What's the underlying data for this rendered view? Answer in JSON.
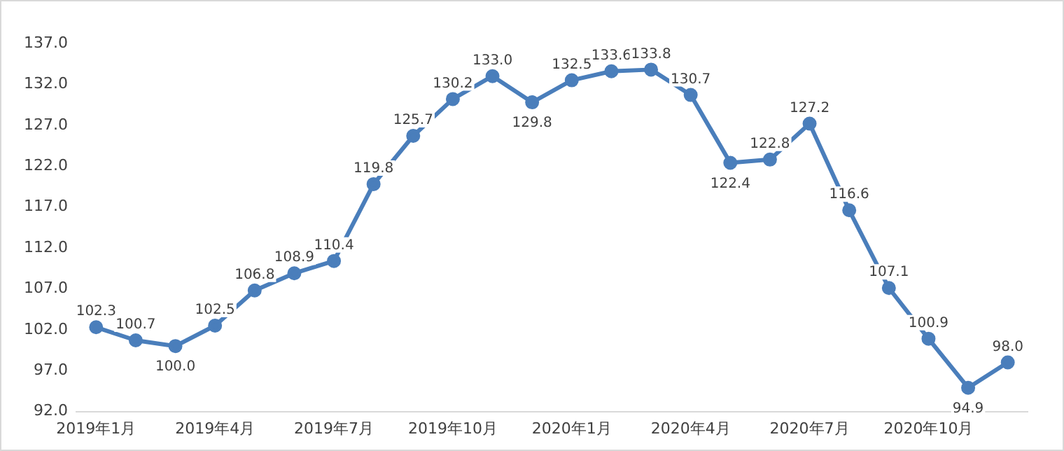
{
  "chart_data": {
    "type": "line",
    "categories": [
      "2019年1月",
      null,
      null,
      "2019年4月",
      null,
      null,
      "2019年7月",
      null,
      null,
      "2019年10月",
      null,
      null,
      "2020年1月",
      null,
      null,
      "2020年4月",
      null,
      null,
      "2020年7月",
      null,
      null,
      "2020年10月",
      null,
      null
    ],
    "series": [
      {
        "color": "#4a7ebb",
        "values": [
          102.3,
          100.7,
          100.0,
          102.5,
          106.8,
          108.9,
          110.4,
          119.8,
          125.7,
          130.2,
          133.0,
          129.8,
          132.5,
          133.6,
          133.8,
          130.7,
          122.4,
          122.8,
          127.2,
          116.6,
          107.1,
          100.9,
          94.9,
          98.0
        ],
        "value_labels": [
          "102.3",
          "100.7",
          "100.0",
          "102.5",
          "106.8",
          "108.9",
          "110.4",
          "119.8",
          "125.7",
          "130.2",
          "133.0",
          "129.8",
          "132.5",
          "133.6",
          "133.8",
          "130.7",
          "122.4",
          "122.8",
          "127.2",
          "116.6",
          "107.1",
          "100.9",
          "94.9",
          "98.0"
        ]
      }
    ],
    "ylim": [
      92,
      137
    ],
    "yticks": [
      {
        "value": 92,
        "label": "92.0"
      },
      {
        "value": 97,
        "label": "97.0"
      },
      {
        "value": 102,
        "label": "102.0"
      },
      {
        "value": 107,
        "label": "107.0"
      },
      {
        "value": 112,
        "label": "112.0"
      },
      {
        "value": 117,
        "label": "117.0"
      },
      {
        "value": 122,
        "label": "122.0"
      },
      {
        "value": 127,
        "label": "127.0"
      },
      {
        "value": 132,
        "label": "132.0"
      },
      {
        "value": 137,
        "label": "137.0"
      }
    ],
    "grid": false,
    "legend": false,
    "marker": "circle",
    "line_style": "solid"
  }
}
